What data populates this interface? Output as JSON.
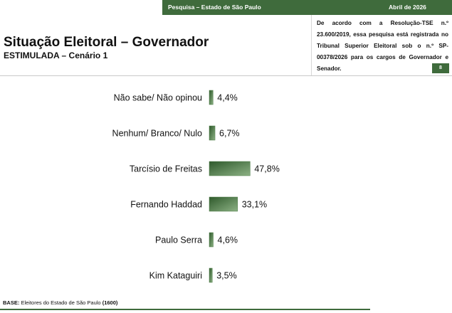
{
  "header": {
    "survey": "Pesquisa – Estado de São Paulo",
    "date": "Abril de 2026"
  },
  "note": "De acordo com a Resolução-TSE n.º 23.600/2019, essa pesquisa está registrada no Tribunal Superior Eleitoral sob o n.º SP-00378/2026 para os cargos de Governador e Senador.",
  "page_number": "8",
  "footer": {
    "label": "BASE:",
    "text": "Eleitores do Estado de São Paulo",
    "count": "(1600)"
  },
  "chart_data": {
    "type": "bar",
    "orientation": "horizontal",
    "title": "Situação Eleitoral – Governador",
    "subtitle": "ESTIMULADA – Cenário 1",
    "categories": [
      "Não sabe/ Não opinou",
      "Nenhum/ Branco/ Nulo",
      "Tarcísio de Freitas",
      "Fernando Haddad",
      "Paulo Serra",
      "Kim Kataguiri"
    ],
    "values": [
      4.4,
      6.7,
      47.8,
      33.1,
      4.6,
      3.5
    ],
    "value_labels": [
      "4,4%",
      "6,7%",
      "47,8%",
      "33,1%",
      "4,6%",
      "3,5%"
    ],
    "color": "#4a7a44"
  }
}
